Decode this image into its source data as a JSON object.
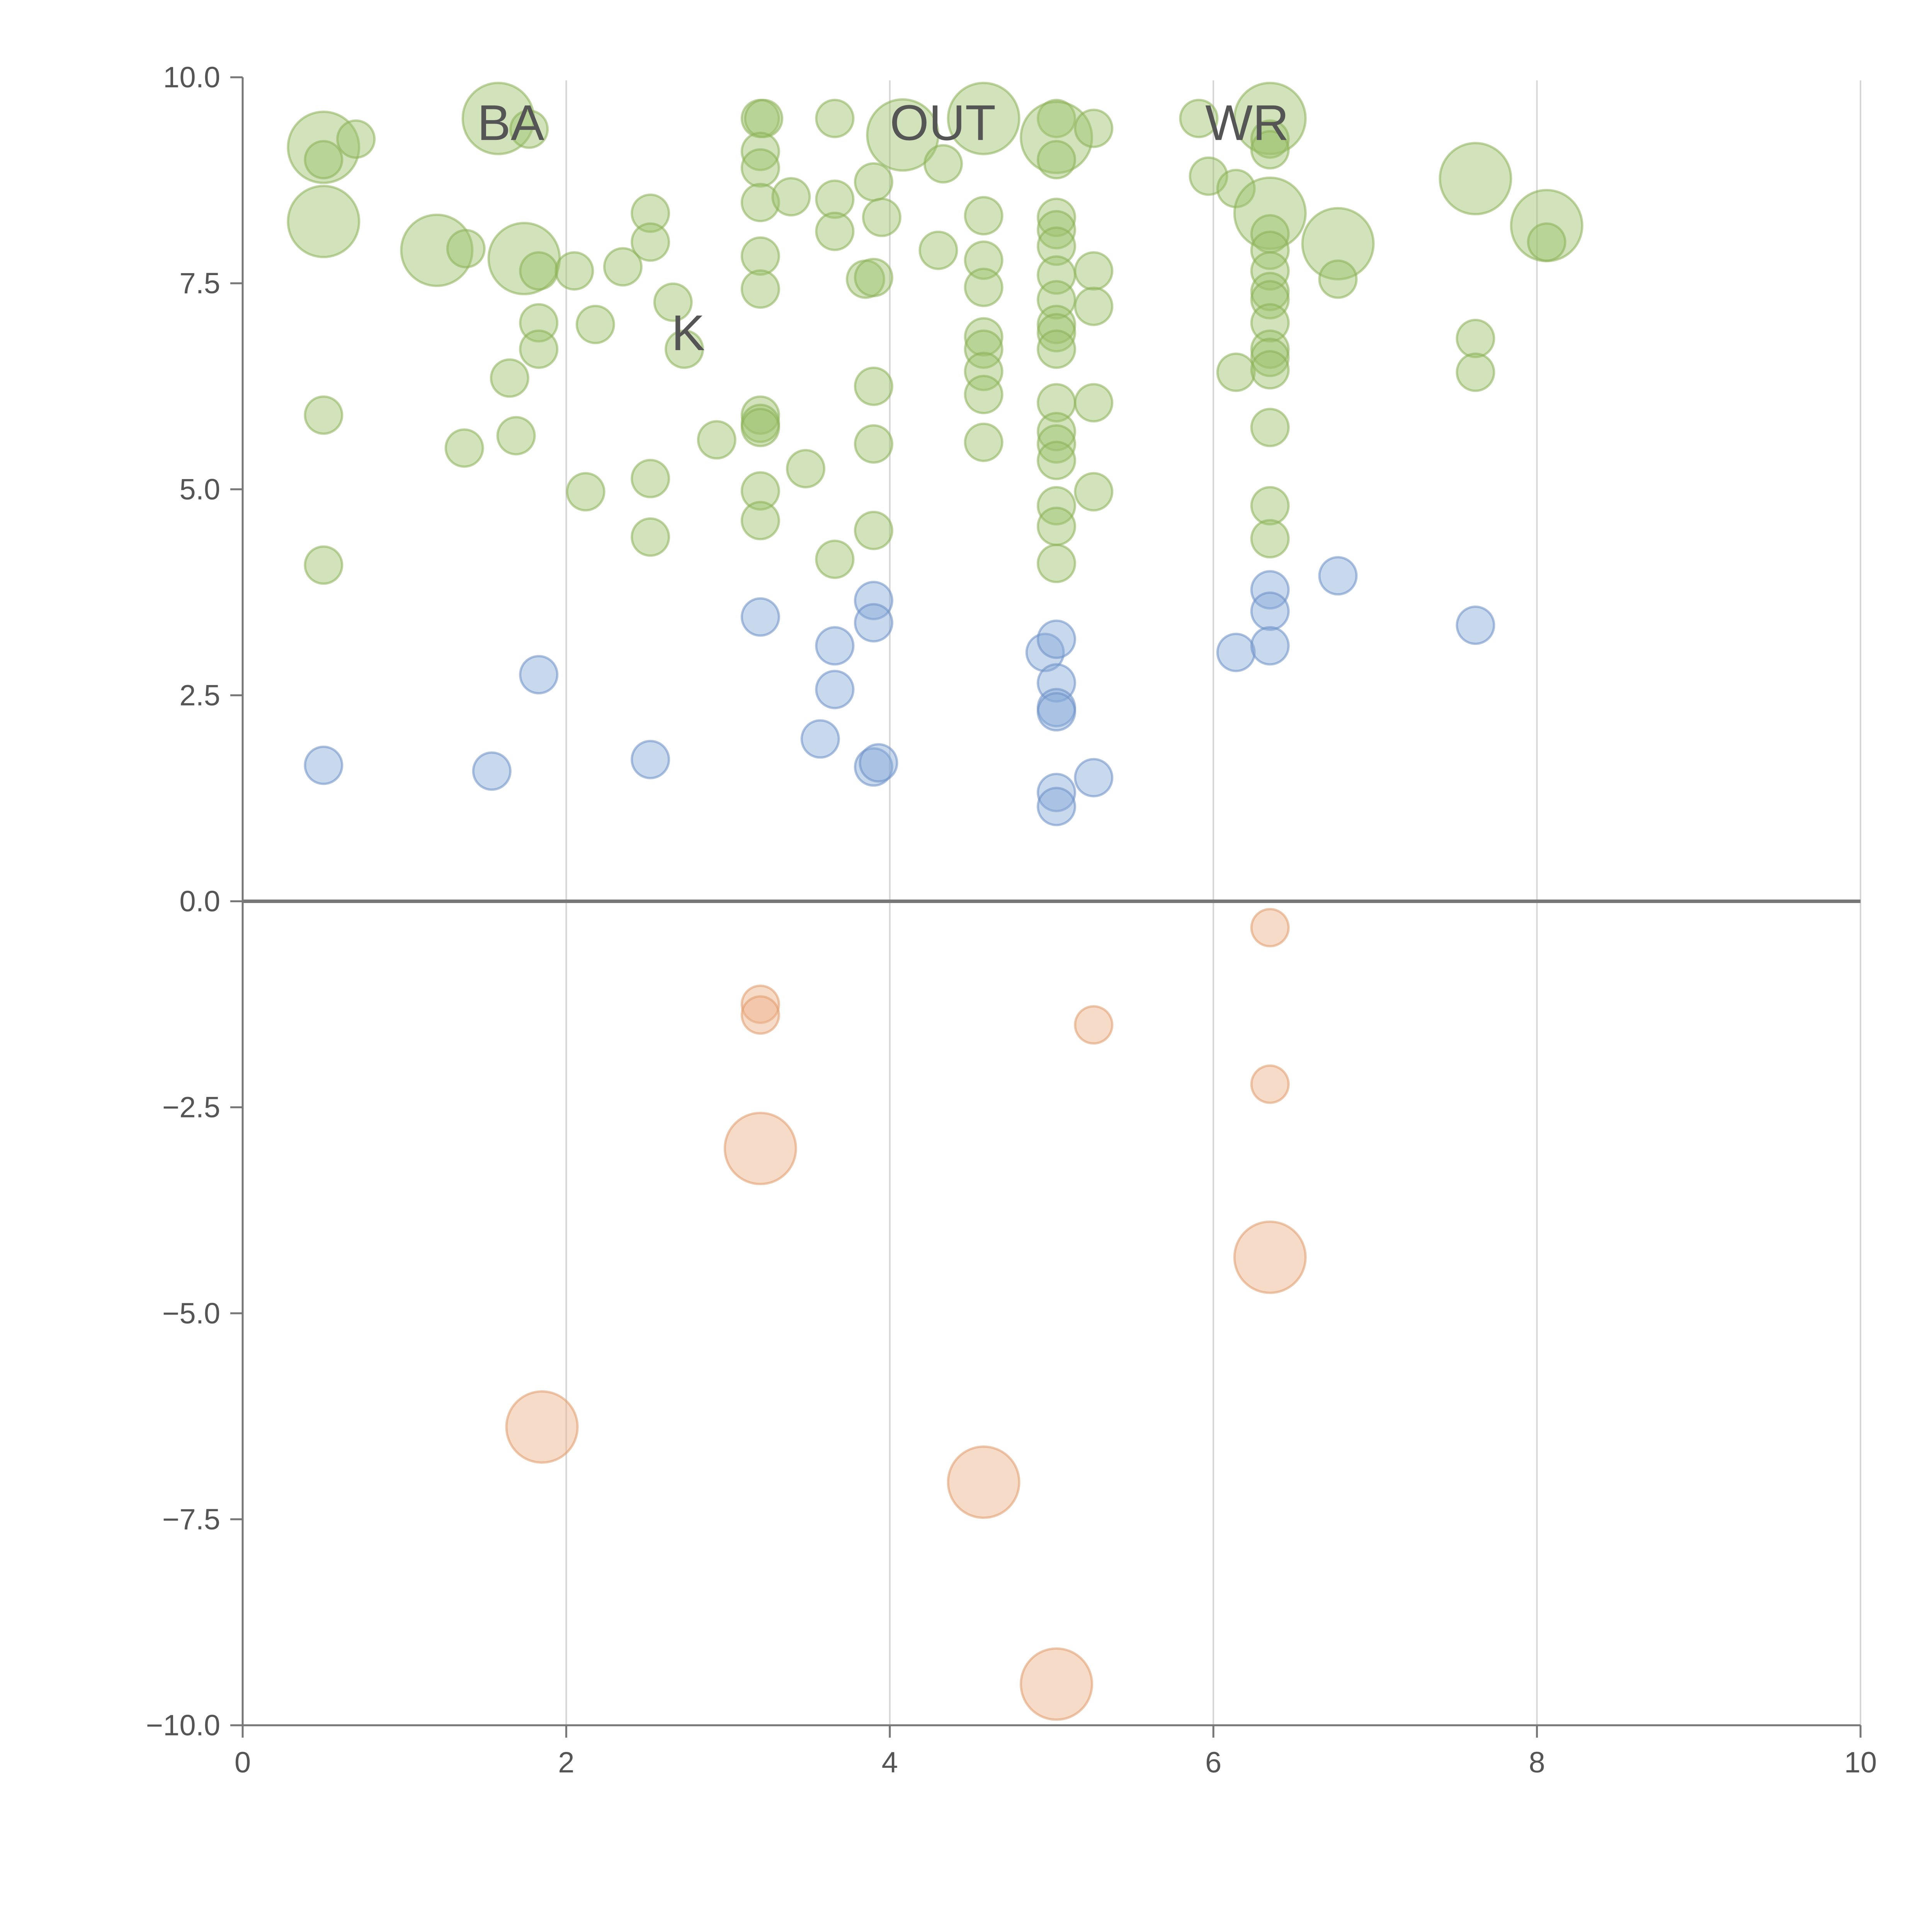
{
  "chart_data": {
    "type": "scatter",
    "title": "",
    "xlabel": "",
    "ylabel": "",
    "xlim": [
      0,
      10
    ],
    "ylim": [
      -10,
      10
    ],
    "x_ticks": [
      0,
      2,
      4,
      6,
      8,
      10
    ],
    "x_tick_labels": [
      "0",
      "2",
      "4",
      "6",
      "8",
      "10"
    ],
    "y_ticks": [
      10,
      7.5,
      5,
      2.5,
      0,
      -2.5,
      -5,
      -7.5,
      -10
    ],
    "y_tick_labels": [
      "10.0",
      "7.5",
      "5.0",
      "2.5",
      "0.0",
      "−2.5",
      "−5.0",
      "−7.5",
      "−10.0"
    ],
    "grid": "vertical lines at x ticks",
    "reference_line_y": 0,
    "point_labels": [
      "BA",
      "K",
      "OUT",
      "WR"
    ],
    "series": [
      {
        "name": "green",
        "color": "#9cc06a",
        "stroke": "#8bb055",
        "points": [
          [
            0.5,
            9.15,
            3
          ],
          [
            0.7,
            9.25,
            1
          ],
          [
            0.5,
            9.0,
            1
          ],
          [
            0.5,
            8.25,
            3
          ],
          [
            0.5,
            5.9,
            1
          ],
          [
            0.5,
            4.08,
            1
          ],
          [
            1.2,
            7.9,
            3
          ],
          [
            1.38,
            7.92,
            1
          ],
          [
            1.37,
            5.5,
            1
          ],
          [
            1.58,
            9.5,
            3
          ],
          [
            1.77,
            9.37,
            1
          ],
          [
            1.65,
            6.35,
            1
          ],
          [
            1.69,
            5.65,
            1
          ],
          [
            1.74,
            7.8,
            3
          ],
          [
            1.83,
            7.65,
            1
          ],
          [
            1.83,
            7.02,
            1
          ],
          [
            1.83,
            6.7,
            1
          ],
          [
            2.05,
            7.65,
            1
          ],
          [
            2.12,
            4.97,
            1
          ],
          [
            2.18,
            7.0,
            1
          ],
          [
            2.35,
            7.7,
            1
          ],
          [
            2.52,
            8.35,
            1
          ],
          [
            2.52,
            8.0,
            1
          ],
          [
            2.52,
            5.13,
            1
          ],
          [
            2.52,
            4.42,
            1
          ],
          [
            2.66,
            7.27,
            1
          ],
          [
            2.73,
            6.7,
            1
          ],
          [
            2.93,
            5.6,
            1
          ],
          [
            3.2,
            9.5,
            1
          ],
          [
            3.22,
            9.5,
            1
          ],
          [
            3.2,
            9.1,
            1
          ],
          [
            3.2,
            8.9,
            1
          ],
          [
            3.2,
            8.48,
            1
          ],
          [
            3.2,
            7.83,
            1
          ],
          [
            3.2,
            7.43,
            1
          ],
          [
            3.2,
            5.9,
            1
          ],
          [
            3.2,
            5.8,
            1
          ],
          [
            3.2,
            5.75,
            1
          ],
          [
            3.2,
            4.98,
            1
          ],
          [
            3.2,
            4.62,
            1
          ],
          [
            3.39,
            8.55,
            1
          ],
          [
            3.48,
            5.25,
            1
          ],
          [
            3.66,
            9.5,
            1
          ],
          [
            3.66,
            8.52,
            1
          ],
          [
            3.66,
            8.13,
            1
          ],
          [
            3.66,
            4.15,
            1
          ],
          [
            3.85,
            7.55,
            1
          ],
          [
            3.9,
            8.73,
            1
          ],
          [
            3.9,
            7.57,
            1
          ],
          [
            3.9,
            6.25,
            1
          ],
          [
            3.9,
            5.55,
            1
          ],
          [
            3.9,
            4.5,
            1
          ],
          [
            3.95,
            8.3,
            1
          ],
          [
            4.08,
            9.3,
            3
          ],
          [
            4.33,
            8.95,
            1
          ],
          [
            4.3,
            7.9,
            1
          ],
          [
            4.58,
            9.5,
            3
          ],
          [
            4.58,
            8.32,
            1
          ],
          [
            4.58,
            7.78,
            1
          ],
          [
            4.58,
            7.45,
            1
          ],
          [
            4.58,
            6.85,
            1
          ],
          [
            4.58,
            6.7,
            1
          ],
          [
            4.58,
            6.43,
            1
          ],
          [
            4.58,
            6.15,
            1
          ],
          [
            4.58,
            5.57,
            1
          ],
          [
            5.03,
            9.5,
            1
          ],
          [
            5.03,
            9.27,
            3
          ],
          [
            5.03,
            9.0,
            1
          ],
          [
            5.03,
            8.3,
            1
          ],
          [
            5.03,
            8.15,
            1
          ],
          [
            5.03,
            7.95,
            1
          ],
          [
            5.03,
            7.6,
            1
          ],
          [
            5.03,
            7.3,
            1
          ],
          [
            5.03,
            7.0,
            1
          ],
          [
            5.03,
            6.9,
            1
          ],
          [
            5.03,
            6.7,
            1
          ],
          [
            5.03,
            6.05,
            1
          ],
          [
            5.03,
            5.7,
            1
          ],
          [
            5.03,
            5.55,
            1
          ],
          [
            5.03,
            5.35,
            1
          ],
          [
            5.03,
            4.8,
            1
          ],
          [
            5.03,
            4.55,
            1
          ],
          [
            5.03,
            4.1,
            1
          ],
          [
            5.26,
            9.38,
            1
          ],
          [
            5.26,
            7.65,
            1
          ],
          [
            5.26,
            7.22,
            1
          ],
          [
            5.26,
            6.05,
            1
          ],
          [
            5.26,
            4.97,
            1
          ],
          [
            5.91,
            9.5,
            1
          ],
          [
            5.97,
            8.8,
            1
          ],
          [
            6.14,
            8.65,
            1
          ],
          [
            6.14,
            6.42,
            1
          ],
          [
            6.35,
            9.5,
            3
          ],
          [
            6.35,
            9.25,
            1
          ],
          [
            6.35,
            9.12,
            1
          ],
          [
            6.35,
            8.35,
            3
          ],
          [
            6.35,
            8.1,
            1
          ],
          [
            6.35,
            7.9,
            1
          ],
          [
            6.35,
            7.65,
            1
          ],
          [
            6.35,
            7.4,
            1
          ],
          [
            6.35,
            7.3,
            1
          ],
          [
            6.35,
            7.02,
            1
          ],
          [
            6.35,
            6.7,
            1
          ],
          [
            6.35,
            6.6,
            1
          ],
          [
            6.35,
            6.45,
            1
          ],
          [
            6.35,
            5.75,
            1
          ],
          [
            6.35,
            4.8,
            1
          ],
          [
            6.35,
            4.4,
            1
          ],
          [
            6.77,
            7.98,
            3
          ],
          [
            6.77,
            7.55,
            1
          ],
          [
            7.62,
            8.77,
            3
          ],
          [
            7.62,
            6.83,
            1
          ],
          [
            7.62,
            6.42,
            1
          ],
          [
            8.06,
            8.2,
            3
          ],
          [
            8.06,
            8.0,
            1
          ]
        ]
      },
      {
        "name": "blue",
        "color": "#86a8d6",
        "stroke": "#6b90c6",
        "points": [
          [
            0.5,
            1.65,
            1
          ],
          [
            1.54,
            1.58,
            1
          ],
          [
            1.83,
            2.75,
            1
          ],
          [
            2.52,
            1.72,
            1
          ],
          [
            3.2,
            3.45,
            1
          ],
          [
            3.57,
            1.97,
            1
          ],
          [
            3.66,
            3.1,
            1
          ],
          [
            3.66,
            2.57,
            1
          ],
          [
            3.9,
            3.65,
            1
          ],
          [
            3.9,
            3.38,
            1
          ],
          [
            3.9,
            1.63,
            1
          ],
          [
            3.93,
            1.68,
            1
          ],
          [
            4.96,
            3.02,
            1
          ],
          [
            5.03,
            3.18,
            1
          ],
          [
            5.03,
            2.65,
            1
          ],
          [
            5.03,
            2.35,
            1
          ],
          [
            5.03,
            2.3,
            1
          ],
          [
            5.03,
            1.32,
            1
          ],
          [
            5.03,
            1.15,
            1
          ],
          [
            5.26,
            1.5,
            1
          ],
          [
            6.14,
            3.02,
            1
          ],
          [
            6.35,
            3.78,
            1
          ],
          [
            6.35,
            3.52,
            1
          ],
          [
            6.35,
            3.1,
            1
          ],
          [
            6.77,
            3.95,
            1
          ],
          [
            7.62,
            3.35,
            1
          ]
        ]
      },
      {
        "name": "orange",
        "color": "#eeb088",
        "stroke": "#e09a6a",
        "points": [
          [
            3.2,
            -1.25,
            1
          ],
          [
            3.2,
            -1.38,
            1
          ],
          [
            3.2,
            -3.0,
            3
          ],
          [
            1.85,
            -6.38,
            3
          ],
          [
            4.58,
            -7.05,
            3
          ],
          [
            5.03,
            -9.5,
            3
          ],
          [
            5.26,
            -1.5,
            1
          ],
          [
            6.35,
            -0.32,
            1
          ],
          [
            6.35,
            -2.22,
            1
          ],
          [
            6.35,
            -4.32,
            3
          ]
        ]
      }
    ]
  }
}
